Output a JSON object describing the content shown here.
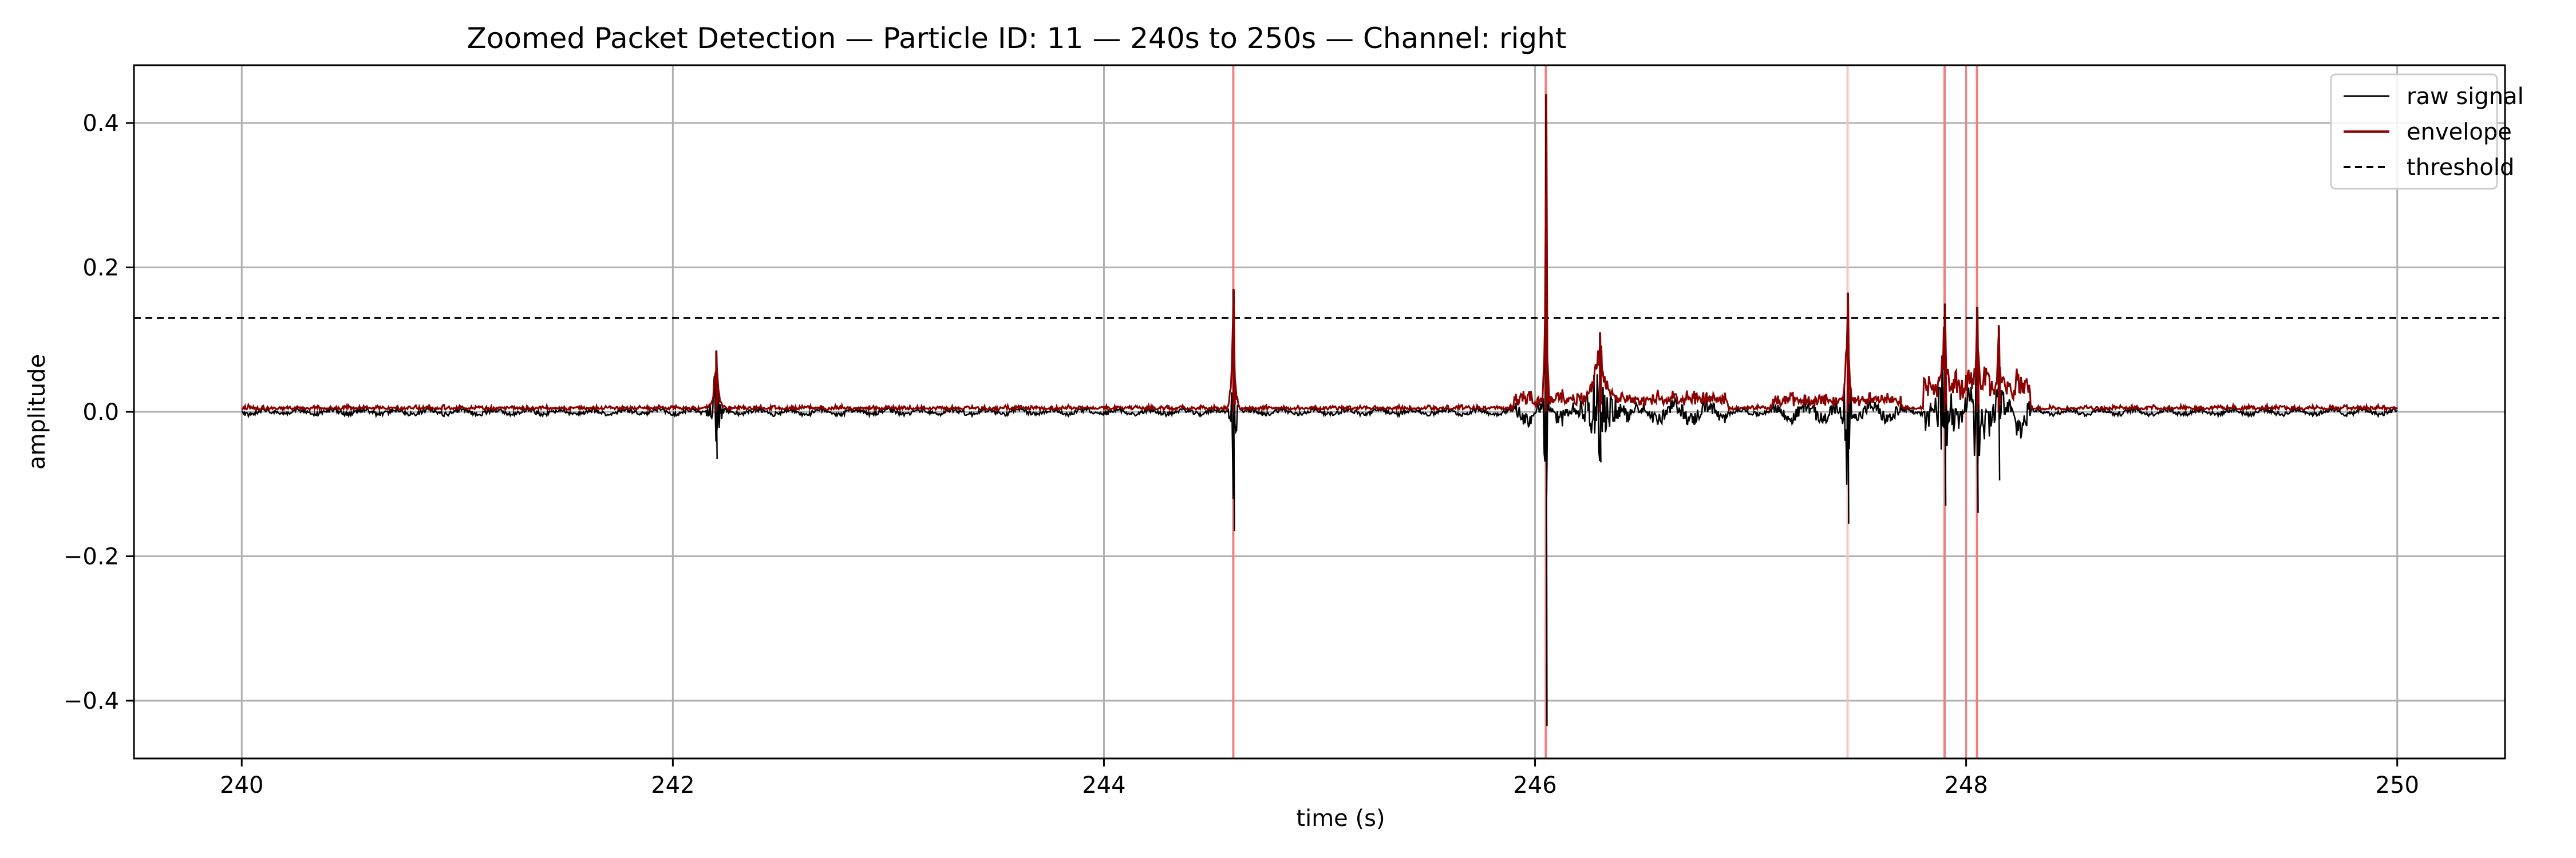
{
  "chart_data": {
    "type": "line",
    "title": "Zoomed Packet Detection — Particle ID: 11 — 240s to 250s — Channel: right",
    "xlabel": "time (s)",
    "ylabel": "amplitude",
    "xlim": [
      239.5,
      250.5
    ],
    "ylim": [
      -0.48,
      0.48
    ],
    "xticks": [
      240,
      242,
      244,
      246,
      248,
      250
    ],
    "xtick_labels": [
      "240",
      "242",
      "244",
      "246",
      "248",
      "250"
    ],
    "yticks": [
      -0.4,
      -0.2,
      0.0,
      0.2,
      0.4
    ],
    "ytick_labels": [
      "−0.4",
      "−0.2",
      "0.0",
      "0.2",
      "0.4"
    ],
    "grid": true,
    "legend_position": "top-right",
    "colors": {
      "raw": "#000000",
      "envelope": "#8b0000",
      "threshold": "#000000",
      "detection": "#f08080",
      "detection_faint": "#f7c4c4",
      "grid": "#b0b0b0"
    },
    "threshold": 0.13,
    "detections": [
      244.6,
      246.05,
      247.45,
      247.9,
      248.05
    ],
    "faint_detections": [
      247.45
    ],
    "events": [
      {
        "t": 242.2,
        "up": 0.085,
        "down": -0.065,
        "env": 0.085,
        "width": 0.08
      },
      {
        "t": 244.6,
        "up": 0.17,
        "down": -0.165,
        "env": 0.17,
        "width": 0.05
      },
      {
        "t": 246.05,
        "up": 0.44,
        "down": -0.435,
        "env": 0.44,
        "width": 0.03
      },
      {
        "t": 246.3,
        "up": 0.11,
        "down": -0.07,
        "env": 0.11,
        "width": 0.25
      },
      {
        "t": 247.45,
        "up": 0.165,
        "down": -0.155,
        "env": 0.165,
        "width": 0.06
      },
      {
        "t": 247.9,
        "up": 0.15,
        "down": -0.13,
        "env": 0.15,
        "width": 0.1
      },
      {
        "t": 248.05,
        "up": 0.145,
        "down": -0.14,
        "env": 0.145,
        "width": 0.08
      },
      {
        "t": 248.15,
        "up": 0.12,
        "down": -0.095,
        "env": 0.12,
        "width": 0.06
      }
    ],
    "series": [
      {
        "name": "raw signal"
      },
      {
        "name": "envelope"
      },
      {
        "name": "threshold"
      }
    ]
  }
}
